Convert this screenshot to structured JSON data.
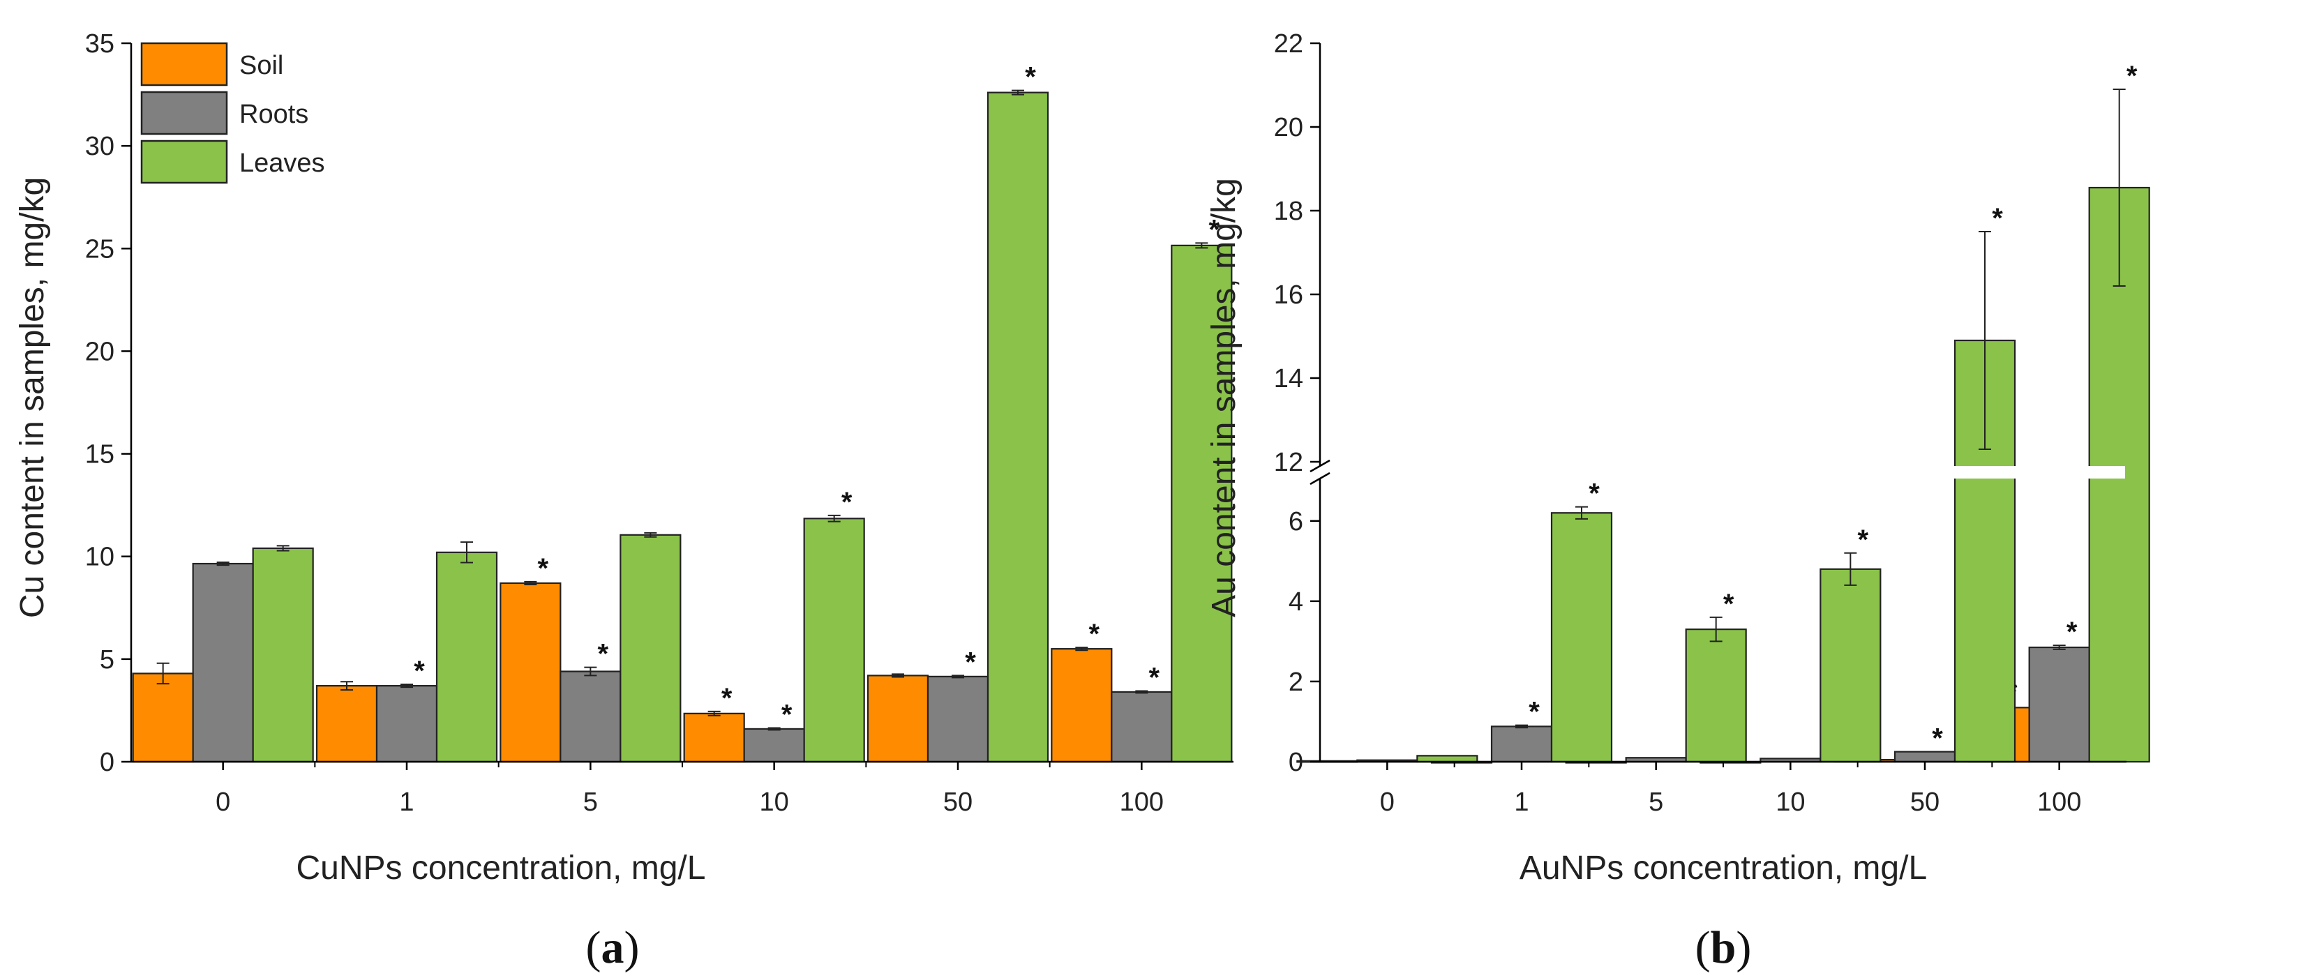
{
  "colors": {
    "soil": "#ff8c00",
    "roots": "#808080",
    "leaves": "#8bc34a",
    "axis": "#000000"
  },
  "chart_data": [
    {
      "type": "bar",
      "panel_label": "a",
      "title": "",
      "xlabel": "CuNPs concentration, mg/L",
      "ylabel": "Cu content in samples, mg/kg",
      "categories": [
        "0",
        "1",
        "5",
        "10",
        "50",
        "100"
      ],
      "ylim": [
        0,
        35
      ],
      "yticks": [
        0,
        5,
        10,
        15,
        20,
        25,
        30,
        35
      ],
      "legend_position": "top-left",
      "series": [
        {
          "name": "Soil",
          "values": [
            4.3,
            3.7,
            8.7,
            2.35,
            4.2,
            5.5
          ],
          "errors": [
            0.5,
            0.2,
            0.07,
            0.1,
            0.07,
            0.07
          ],
          "significant": [
            false,
            false,
            true,
            true,
            false,
            true
          ]
        },
        {
          "name": "Roots",
          "values": [
            9.65,
            3.7,
            4.4,
            1.6,
            4.15,
            3.4
          ],
          "errors": [
            0.07,
            0.07,
            0.2,
            0.05,
            0.05,
            0.05
          ],
          "significant": [
            false,
            true,
            true,
            true,
            true,
            true
          ]
        },
        {
          "name": "Leaves",
          "values": [
            10.4,
            10.2,
            11.05,
            11.85,
            32.6,
            25.15
          ],
          "errors": [
            0.12,
            0.5,
            0.1,
            0.15,
            0.1,
            0.12
          ],
          "significant": [
            false,
            false,
            false,
            true,
            true,
            true
          ]
        }
      ]
    },
    {
      "type": "bar",
      "panel_label": "b",
      "title": "",
      "xlabel": "AuNPs concentration, mg/L",
      "ylabel": "Au content in samples, mg/kg",
      "categories": [
        "0",
        "1",
        "5",
        "10",
        "50",
        "100"
      ],
      "axis_break": {
        "lower_range": [
          0,
          6.5
        ],
        "upper_range": [
          12,
          22
        ]
      },
      "yticks": [
        0,
        2,
        4,
        6,
        12,
        14,
        16,
        18,
        20,
        22
      ],
      "series": [
        {
          "name": "Soil",
          "values": [
            0.02,
            0,
            0,
            0,
            0.05,
            1.35
          ],
          "errors": [
            0,
            0,
            0,
            0,
            0,
            0.05
          ],
          "significant": [
            false,
            false,
            false,
            false,
            false,
            true
          ]
        },
        {
          "name": "Roots",
          "values": [
            0.04,
            0.88,
            0.1,
            0.08,
            0.25,
            2.85
          ],
          "errors": [
            0,
            0.03,
            0,
            0,
            0,
            0.05
          ],
          "significant": [
            false,
            true,
            false,
            false,
            true,
            true
          ]
        },
        {
          "name": "Leaves",
          "values": [
            0.15,
            6.2,
            3.3,
            4.8,
            14.9,
            18.55
          ],
          "errors": [
            0,
            0.15,
            0.3,
            0.4,
            2.6,
            2.35
          ],
          "significant": [
            false,
            true,
            true,
            true,
            true,
            true
          ]
        }
      ]
    }
  ]
}
